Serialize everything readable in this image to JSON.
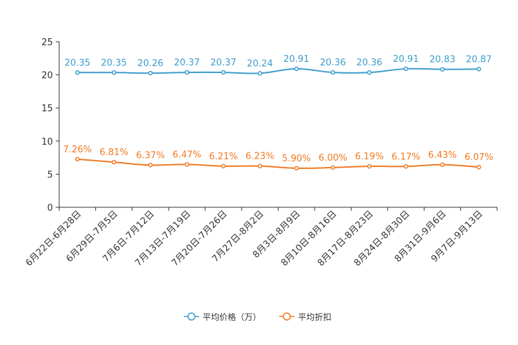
{
  "chart_data": {
    "type": "line",
    "title": "",
    "xlabel": "",
    "ylabel": "",
    "ylim": [
      0,
      25
    ],
    "yticks": [
      "0",
      "5",
      "10",
      "15",
      "20",
      "25"
    ],
    "categories": [
      "6月22日-6月28日",
      "6月29日-7月5日",
      "7月6日-7月12日",
      "7月13日-7月19日",
      "7月20日-7月26日",
      "7月27日-8月2日",
      "8月3日-8月9日",
      "8月10日-8月16日",
      "8月17日-8月23日",
      "8月24日-8月30日",
      "8月31日-9月6日",
      "9月7日-9月13日"
    ],
    "grid": false,
    "legend_position": "bottom-center",
    "series": [
      {
        "name": "平均价格（万）",
        "color": "#3d9ccc",
        "values": [
          20.35,
          20.35,
          20.26,
          20.37,
          20.37,
          20.24,
          20.91,
          20.36,
          20.36,
          20.91,
          20.83,
          20.87
        ],
        "labels": [
          "20.35",
          "20.35",
          "20.26",
          "20.37",
          "20.37",
          "20.24",
          "20.91",
          "20.36",
          "20.36",
          "20.91",
          "20.83",
          "20.87"
        ]
      },
      {
        "name": "平均折扣",
        "color": "#f07a22",
        "values": [
          7.26,
          6.81,
          6.37,
          6.47,
          6.21,
          6.23,
          5.9,
          6.0,
          6.19,
          6.17,
          6.43,
          6.07
        ],
        "labels": [
          "7.26%",
          "6.81%",
          "6.37%",
          "6.47%",
          "6.21%",
          "6.23%",
          "5.90%",
          "6.00%",
          "6.19%",
          "6.17%",
          "6.43%",
          "6.07%"
        ]
      }
    ]
  }
}
